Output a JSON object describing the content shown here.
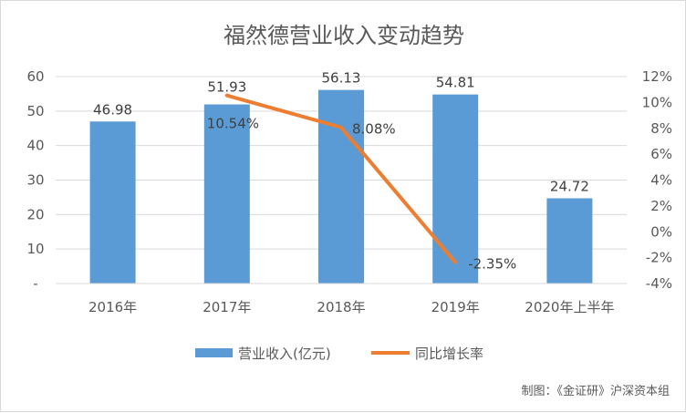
{
  "chart_data": {
    "type": "bar",
    "title": "福然德营业收入变动趋势",
    "categories": [
      "2016年",
      "2017年",
      "2018年",
      "2019年",
      "2020年上半年"
    ],
    "series": [
      {
        "name": "营业收入(亿元)",
        "type": "bar",
        "axis": "left",
        "color": "#5b9bd5",
        "values": [
          46.98,
          51.93,
          56.13,
          54.81,
          24.72
        ],
        "labels": [
          "46.98",
          "51.93",
          "56.13",
          "54.81",
          "24.72"
        ]
      },
      {
        "name": "同比增长率",
        "type": "line",
        "axis": "right",
        "color": "#ed7d31",
        "values": [
          null,
          10.54,
          8.08,
          -2.35,
          null
        ],
        "labels": [
          "",
          "10.54%",
          "8.08%",
          "-2.35%",
          ""
        ]
      }
    ],
    "y_left": {
      "ylim": [
        0,
        60
      ],
      "ticks": [
        0,
        10,
        20,
        30,
        40,
        50,
        60
      ],
      "tick_labels": [
        "-",
        "10",
        "20",
        "30",
        "40",
        "50",
        "60"
      ]
    },
    "y_right": {
      "ylim": [
        -4,
        12
      ],
      "ticks": [
        -4,
        -2,
        0,
        2,
        4,
        6,
        8,
        10,
        12
      ],
      "tick_labels": [
        "-4%",
        "-2%",
        "0%",
        "2%",
        "4%",
        "6%",
        "8%",
        "10%",
        "12%"
      ]
    },
    "grid": true,
    "legend": "bottom",
    "source_note": "制图：《金证研》沪深资本组"
  }
}
